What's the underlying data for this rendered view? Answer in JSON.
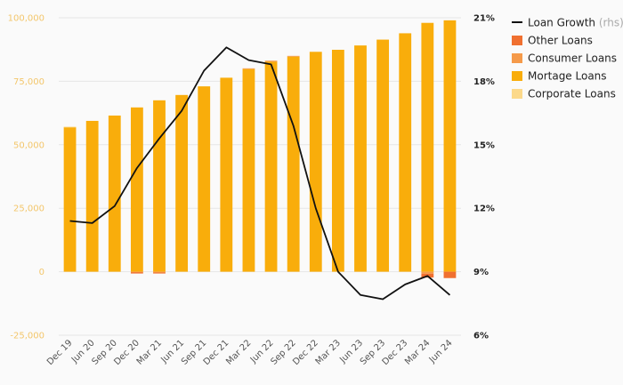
{
  "chart_data": {
    "type": "bar",
    "title": "",
    "categories": [
      "Dec 19",
      "Jun 20",
      "Sep 20",
      "Dec 20",
      "Mar 21",
      "Jun 21",
      "Sep 21",
      "Dec 21",
      "Mar 22",
      "Jun 22",
      "Sep 22",
      "Dec 22",
      "Mar 23",
      "Jun 23",
      "Sep 23",
      "Dec 23",
      "Mar 24",
      "Jun 24"
    ],
    "left_axis": {
      "ylim": [
        -25000,
        100000
      ],
      "ticks": [
        "-25,000",
        "0",
        "25,000",
        "50,000",
        "75,000",
        "100,000"
      ],
      "tick_values": [
        -25000,
        0,
        25000,
        50000,
        75000,
        100000
      ]
    },
    "right_axis": {
      "ylim": [
        6,
        21
      ],
      "ticks": [
        "6%",
        "9%",
        "12%",
        "15%",
        "18%",
        "21%"
      ],
      "tick_values": [
        6,
        9,
        12,
        15,
        18,
        21
      ]
    },
    "series": [
      {
        "name": "Other Loans",
        "color": "#f07030",
        "type": "bar",
        "values": [
          0,
          0,
          0,
          -500,
          -400,
          0,
          0,
          0,
          0,
          0,
          0,
          0,
          0,
          0,
          0,
          0,
          -1500,
          -2500
        ]
      },
      {
        "name": "Consumer Loans",
        "color": "#f59a4a",
        "type": "bar",
        "values": [
          0,
          0,
          0,
          -200,
          -300,
          0,
          0,
          0,
          300,
          400,
          300,
          0,
          0,
          0,
          0,
          0,
          -800,
          0
        ]
      },
      {
        "name": "Mortage Loans",
        "color": "#f9ad0b",
        "type": "bar",
        "values": [
          56900,
          59400,
          61500,
          64700,
          67500,
          69600,
          73000,
          76400,
          79800,
          82700,
          84700,
          86600,
          87400,
          89100,
          91400,
          93900,
          98000,
          99000
        ]
      },
      {
        "name": "Corporate Loans",
        "color": "#fcd98a",
        "type": "bar",
        "values": [
          200,
          0,
          0,
          0,
          0,
          0,
          0,
          0,
          0,
          0,
          0,
          0,
          0,
          0,
          0,
          0,
          0,
          0
        ]
      },
      {
        "name": "Loan Growth",
        "name_suffix": " (rhs)",
        "color": "#111111",
        "type": "line",
        "axis": "right",
        "values": [
          11.4,
          11.3,
          12.1,
          13.9,
          15.3,
          16.6,
          18.5,
          19.6,
          19.0,
          18.8,
          15.9,
          12.0,
          9.0,
          7.9,
          7.7,
          8.4,
          8.8,
          7.9
        ]
      }
    ],
    "legend": {
      "position": "top-right",
      "order": [
        "Loan Growth",
        "Other Loans",
        "Consumer Loans",
        "Mortage Loans",
        "Corporate Loans"
      ]
    }
  }
}
